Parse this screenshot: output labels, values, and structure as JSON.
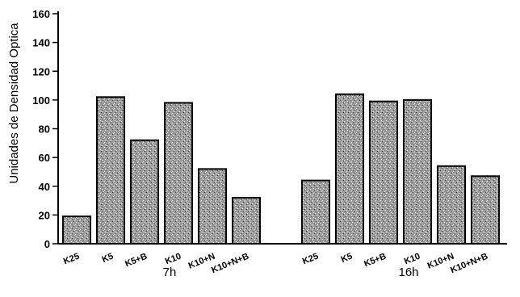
{
  "chart_data": {
    "type": "bar",
    "ylabel": "Unidades de Densidad Optica",
    "xlabel": "",
    "ylim": [
      0,
      160
    ],
    "yticks": [
      0,
      20,
      40,
      60,
      80,
      100,
      120,
      140,
      160
    ],
    "bar_fill": "#8a8a8a",
    "groups": [
      {
        "name": "7h",
        "categories": [
          "K25",
          "K5",
          "K5+B",
          "K10",
          "K10+N",
          "K10+N+B"
        ],
        "values": [
          19,
          102,
          72,
          98,
          52,
          32
        ]
      },
      {
        "name": "16h",
        "categories": [
          "K25",
          "K5",
          "K5+B",
          "K10",
          "K10+N",
          "K10+N+B"
        ],
        "values": [
          44,
          104,
          99,
          100,
          54,
          47
        ]
      }
    ]
  }
}
